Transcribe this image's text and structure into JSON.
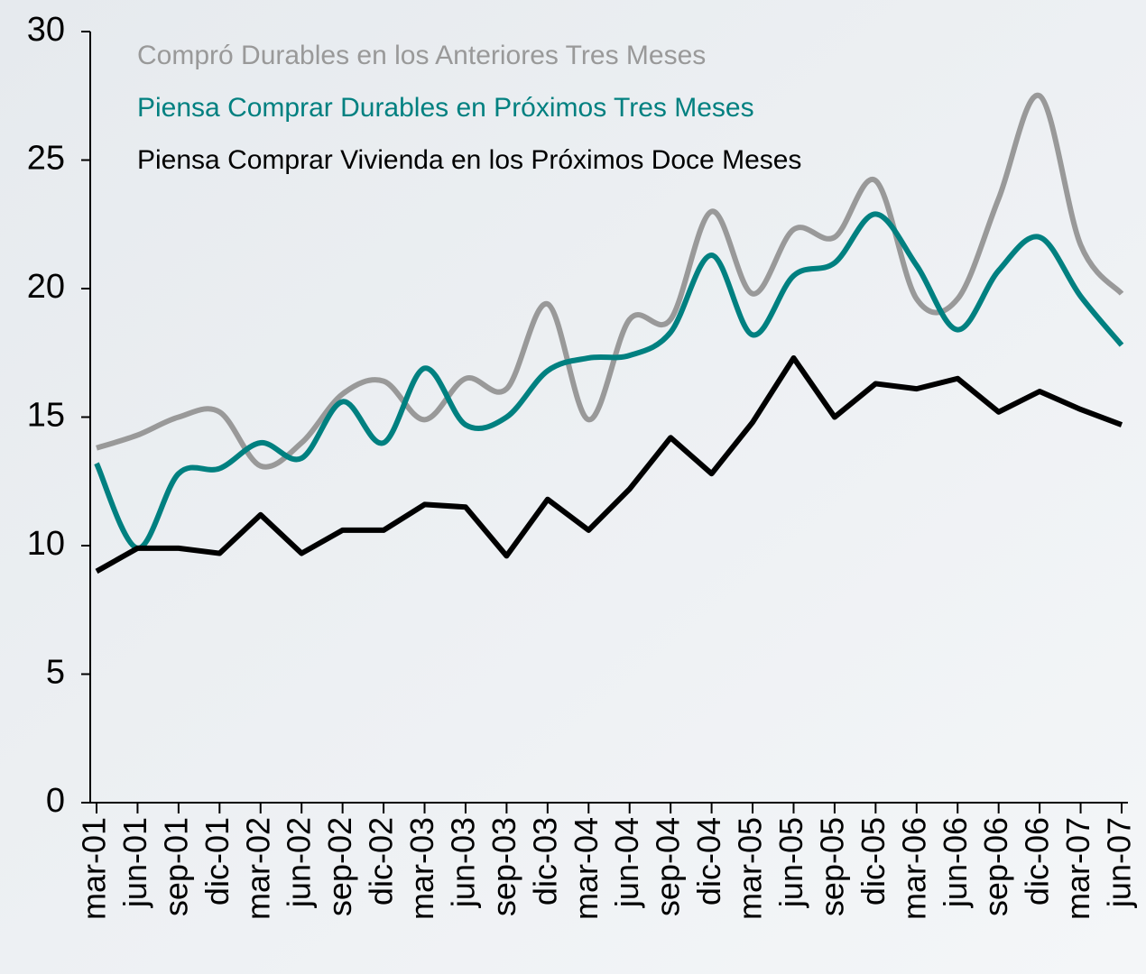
{
  "chart_data": {
    "type": "line",
    "categories": [
      "mar-01",
      "jun-01",
      "sep-01",
      "dic-01",
      "mar-02",
      "jun-02",
      "sep-02",
      "dic-02",
      "mar-03",
      "jun-03",
      "sep-03",
      "dic-03",
      "mar-04",
      "jun-04",
      "sep-04",
      "dic-04",
      "mar-05",
      "jun-05",
      "sep-05",
      "dic-05",
      "mar-06",
      "jun-06",
      "sep-06",
      "dic-06",
      "mar-07",
      "jun-07"
    ],
    "series": [
      {
        "name": "Compró Durables en los Anteriores Tres Meses",
        "color": "#999999",
        "smooth": true,
        "values": [
          13.8,
          14.3,
          15.0,
          15.2,
          13.1,
          14.0,
          15.9,
          16.4,
          14.9,
          16.5,
          16.1,
          19.4,
          14.9,
          18.8,
          18.8,
          23.0,
          19.8,
          22.3,
          22.0,
          24.2,
          19.6,
          19.6,
          23.5,
          27.5,
          21.7,
          19.8
        ]
      },
      {
        "name": "Piensa Comprar Durables en Próximos Tres Meses",
        "color": "#008080",
        "smooth": true,
        "values": [
          13.2,
          9.9,
          12.8,
          13.0,
          14.0,
          13.4,
          15.6,
          14.0,
          16.9,
          14.7,
          15.0,
          16.8,
          17.3,
          17.4,
          18.3,
          21.3,
          18.2,
          20.5,
          21.0,
          22.9,
          20.9,
          18.4,
          20.7,
          22.0,
          19.7,
          17.8
        ]
      },
      {
        "name": "Piensa Comprar Vivienda en los Próximos Doce Meses",
        "color": "#000000",
        "smooth": false,
        "values": [
          9.0,
          9.9,
          9.9,
          9.7,
          11.2,
          9.7,
          10.6,
          10.6,
          11.6,
          11.5,
          9.6,
          11.8,
          10.6,
          12.2,
          14.2,
          12.8,
          14.8,
          17.3,
          15.0,
          16.3,
          16.1,
          16.5,
          15.2,
          16.0,
          15.3,
          14.7
        ]
      }
    ],
    "ylim": [
      0,
      30
    ],
    "yticks": [
      0,
      5,
      10,
      15,
      20,
      25,
      30
    ]
  }
}
